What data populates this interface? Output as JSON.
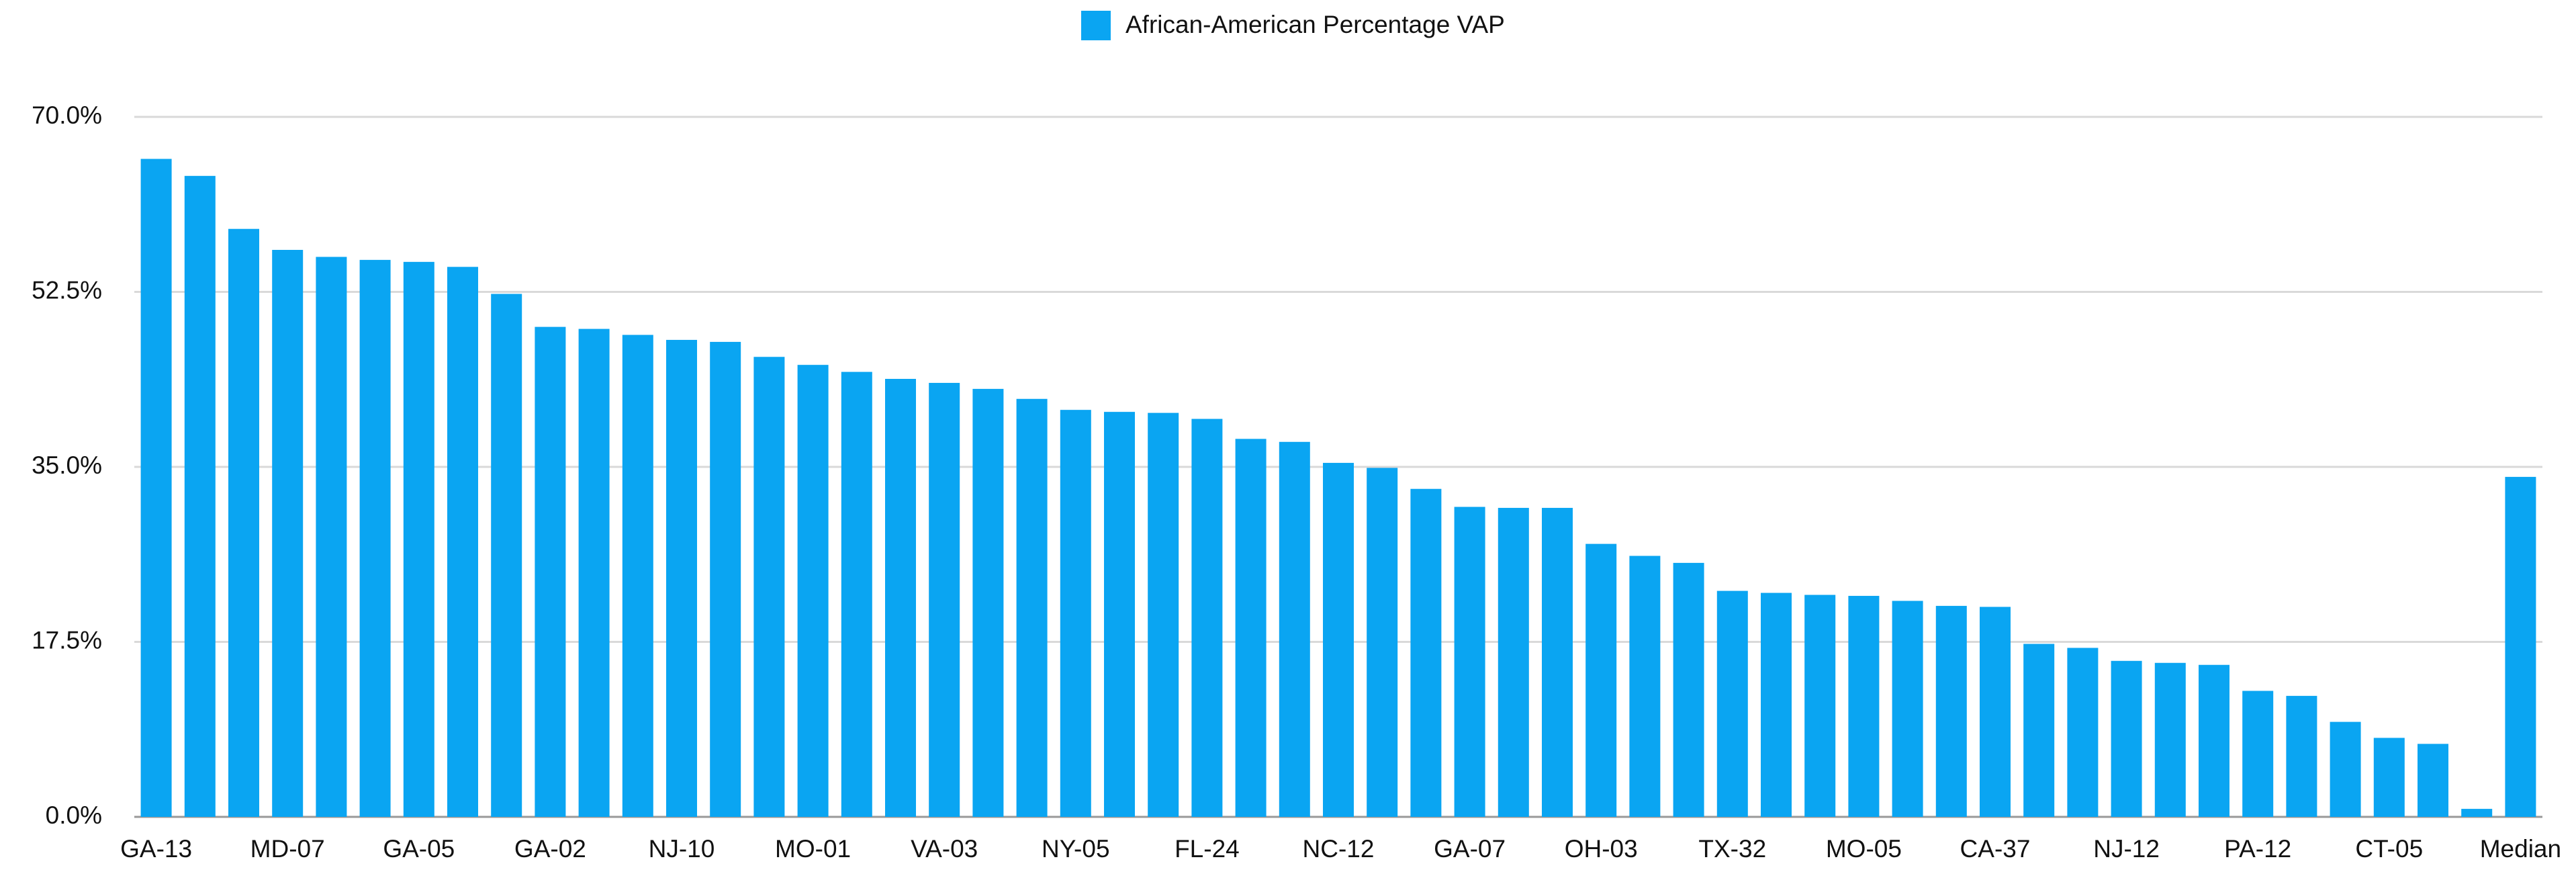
{
  "chart_data": {
    "type": "bar",
    "categories": [
      "GA-13",
      null,
      null,
      "MD-07",
      null,
      null,
      "GA-05",
      null,
      null,
      "GA-02",
      null,
      null,
      "NJ-10",
      null,
      null,
      "MO-01",
      null,
      null,
      "VA-03",
      null,
      null,
      "NY-05",
      null,
      null,
      "FL-24",
      null,
      null,
      "NC-12",
      null,
      null,
      "GA-07",
      null,
      null,
      "OH-03",
      null,
      null,
      "TX-32",
      null,
      null,
      "MO-05",
      null,
      null,
      "CA-37",
      null,
      null,
      "NJ-12",
      null,
      null,
      "PA-12",
      null,
      null,
      "CT-05",
      null,
      null,
      "Median"
    ],
    "series": [
      {
        "name": "African-American Percentage VAP",
        "color": "#0aa5f2",
        "values": [
          65.8,
          64.1,
          58.8,
          56.7,
          56.0,
          55.7,
          55.5,
          55.0,
          52.3,
          49.0,
          48.8,
          48.2,
          47.7,
          47.5,
          46.0,
          45.2,
          44.5,
          43.8,
          43.4,
          42.8,
          41.8,
          40.7,
          40.5,
          40.4,
          39.8,
          37.8,
          37.5,
          35.4,
          34.9,
          32.8,
          31.0,
          30.9,
          30.9,
          27.3,
          26.1,
          25.4,
          22.6,
          22.4,
          22.2,
          22.1,
          21.6,
          21.1,
          21.0,
          17.3,
          16.9,
          15.6,
          15.4,
          15.2,
          12.6,
          12.1,
          9.5,
          7.9,
          7.3,
          0.8,
          34.0
        ]
      }
    ],
    "ylim": [
      0,
      70
    ],
    "yticks": [
      {
        "value": 0,
        "label": "0.0%"
      },
      {
        "value": 17.5,
        "label": "17.5%"
      },
      {
        "value": 35,
        "label": "35.0%"
      },
      {
        "value": 52.5,
        "label": "52.5%"
      },
      {
        "value": 70,
        "label": "70.0%"
      }
    ],
    "grid": true,
    "legend": "top"
  }
}
